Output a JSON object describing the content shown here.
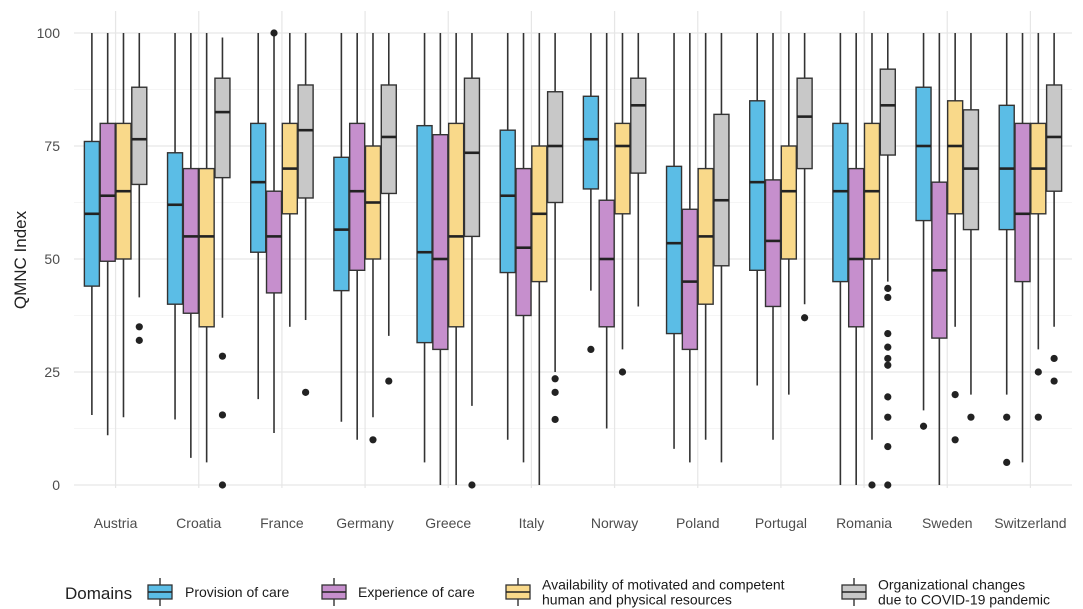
{
  "chart_data": {
    "type": "boxplot",
    "title": "",
    "xlabel": "",
    "ylabel": "QMNC Index",
    "ylim": [
      0,
      100
    ],
    "yticks": [
      0,
      25,
      50,
      75,
      100
    ],
    "grid": true,
    "legend_position": "bottom",
    "legend_title": "Domains",
    "categories": [
      "Austria",
      "Croatia",
      "France",
      "Germany",
      "Greece",
      "Italy",
      "Norway",
      "Poland",
      "Portugal",
      "Romania",
      "Sweden",
      "Switzerland"
    ],
    "series": [
      {
        "name": "Provision of care",
        "color": "#5bbde6",
        "boxes": [
          {
            "min": 15.5,
            "q1": 44,
            "median": 60,
            "q3": 76,
            "max": 100,
            "outliers": []
          },
          {
            "min": 14.5,
            "q1": 40,
            "median": 62,
            "q3": 73.5,
            "max": 100,
            "outliers": []
          },
          {
            "min": 19,
            "q1": 51.5,
            "median": 67,
            "q3": 80,
            "max": 100,
            "outliers": []
          },
          {
            "min": 14,
            "q1": 43,
            "median": 56.5,
            "q3": 72.5,
            "max": 100,
            "outliers": []
          },
          {
            "min": 5,
            "q1": 31.5,
            "median": 51.5,
            "q3": 79.5,
            "max": 100,
            "outliers": []
          },
          {
            "min": 10,
            "q1": 47,
            "median": 64,
            "q3": 78.5,
            "max": 100,
            "outliers": []
          },
          {
            "min": 43,
            "q1": 65.5,
            "median": 76.5,
            "q3": 86,
            "max": 100,
            "outliers": [
              30
            ]
          },
          {
            "min": 8,
            "q1": 33.5,
            "median": 53.5,
            "q3": 70.5,
            "max": 100,
            "outliers": []
          },
          {
            "min": 22,
            "q1": 47.5,
            "median": 67,
            "q3": 85,
            "max": 100,
            "outliers": []
          },
          {
            "min": 0,
            "q1": 45,
            "median": 65,
            "q3": 80,
            "max": 100,
            "outliers": []
          },
          {
            "min": 16.5,
            "q1": 58.5,
            "median": 75,
            "q3": 88,
            "max": 100,
            "outliers": [
              13
            ]
          },
          {
            "min": 20,
            "q1": 56.5,
            "median": 70,
            "q3": 84,
            "max": 100,
            "outliers": [
              15,
              5
            ]
          }
        ]
      },
      {
        "name": "Experience of care",
        "color": "#c68fcd",
        "boxes": [
          {
            "min": 11,
            "q1": 49.5,
            "median": 64,
            "q3": 80,
            "max": 100,
            "outliers": []
          },
          {
            "min": 6,
            "q1": 38,
            "median": 55,
            "q3": 70,
            "max": 100,
            "outliers": []
          },
          {
            "min": 11.5,
            "q1": 42.5,
            "median": 55,
            "q3": 65,
            "max": 100,
            "outliers": []
          },
          {
            "min": 10,
            "q1": 47.5,
            "median": 65,
            "q3": 80,
            "max": 100,
            "outliers": []
          },
          {
            "min": 0,
            "q1": 30,
            "median": 50,
            "q3": 77.5,
            "max": 100,
            "outliers": []
          },
          {
            "min": 5,
            "q1": 37.5,
            "median": 52.5,
            "q3": 70,
            "max": 100,
            "outliers": []
          },
          {
            "min": 12.5,
            "q1": 35,
            "median": 50,
            "q3": 63,
            "max": 100,
            "outliers": []
          },
          {
            "min": 5,
            "q1": 30,
            "median": 45,
            "q3": 61,
            "max": 100,
            "outliers": []
          },
          {
            "min": 10,
            "q1": 39.5,
            "median": 54,
            "q3": 67.5,
            "max": 100,
            "outliers": []
          },
          {
            "min": 0,
            "q1": 35,
            "median": 50,
            "q3": 70,
            "max": 100,
            "outliers": []
          },
          {
            "min": 0,
            "q1": 32.5,
            "median": 47.5,
            "q3": 67,
            "max": 100,
            "outliers": []
          },
          {
            "min": 5,
            "q1": 45,
            "median": 60,
            "q3": 80,
            "max": 100,
            "outliers": []
          }
        ]
      },
      {
        "name": "Availability of motivated and competent human and physical resources",
        "color": "#f9d98a",
        "boxes": [
          {
            "min": 15,
            "q1": 50,
            "median": 65,
            "q3": 80,
            "max": 100,
            "outliers": []
          },
          {
            "min": 5,
            "q1": 35,
            "median": 55,
            "q3": 70,
            "max": 100,
            "outliers": []
          },
          {
            "min": 35,
            "q1": 60,
            "median": 70,
            "q3": 80,
            "max": 100,
            "outliers": []
          },
          {
            "min": 15,
            "q1": 50,
            "median": 62.5,
            "q3": 75,
            "max": 100,
            "outliers": [
              10
            ]
          },
          {
            "min": 0,
            "q1": 35,
            "median": 55,
            "q3": 80,
            "max": 100,
            "outliers": []
          },
          {
            "min": 0,
            "q1": 45,
            "median": 60,
            "q3": 75,
            "max": 100,
            "outliers": []
          },
          {
            "min": 30,
            "q1": 60,
            "median": 75,
            "q3": 80,
            "max": 100,
            "outliers": [
              25
            ]
          },
          {
            "min": 10,
            "q1": 40,
            "median": 55,
            "q3": 70,
            "max": 100,
            "outliers": []
          },
          {
            "min": 20,
            "q1": 50,
            "median": 65,
            "q3": 75,
            "max": 100,
            "outliers": []
          },
          {
            "min": 10,
            "q1": 50,
            "median": 65,
            "q3": 80,
            "max": 100,
            "outliers": [
              0
            ]
          },
          {
            "min": 35,
            "q1": 60,
            "median": 75,
            "q3": 85,
            "max": 100,
            "outliers": [
              20,
              10
            ]
          },
          {
            "min": 30,
            "q1": 60,
            "median": 70,
            "q3": 80,
            "max": 100,
            "outliers": [
              25,
              15
            ]
          }
        ]
      },
      {
        "name": "Organizational changes due to COVID-19 pandemic",
        "color": "#c8c8c8",
        "boxes": [
          {
            "min": 41.5,
            "q1": 66.5,
            "median": 76.5,
            "q3": 88,
            "max": 100,
            "outliers": [
              35,
              32
            ]
          },
          {
            "min": 37,
            "q1": 68,
            "median": 82.5,
            "q3": 90,
            "max": 99,
            "outliers": [
              28.5,
              15.5,
              0
            ]
          },
          {
            "min": 36.5,
            "q1": 63.5,
            "median": 78.5,
            "q3": 88.5,
            "max": 100,
            "outliers": [
              20.5
            ]
          },
          {
            "min": 33,
            "q1": 64.5,
            "median": 77,
            "q3": 88.5,
            "max": 100,
            "outliers": [
              23
            ]
          },
          {
            "min": 17.5,
            "q1": 55,
            "median": 73.5,
            "q3": 90,
            "max": 100,
            "outliers": [
              0
            ]
          },
          {
            "min": 25,
            "q1": 62.5,
            "median": 75,
            "q3": 87,
            "max": 100,
            "outliers": [
              23.5,
              20.5,
              14.5
            ]
          },
          {
            "min": 39.5,
            "q1": 69,
            "median": 84,
            "q3": 90,
            "max": 100,
            "outliers": []
          },
          {
            "min": 5,
            "q1": 48.5,
            "median": 63,
            "q3": 82,
            "max": 100,
            "outliers": []
          },
          {
            "min": 40,
            "q1": 70,
            "median": 81.5,
            "q3": 90,
            "max": 100,
            "outliers": [
              37
            ]
          },
          {
            "min": 45,
            "q1": 73,
            "median": 84,
            "q3": 92,
            "max": 100,
            "outliers": [
              43.5,
              41.5,
              33.5,
              30.5,
              28,
              26.5,
              19.5,
              15,
              8.5,
              0
            ]
          },
          {
            "min": 20,
            "q1": 56.5,
            "median": 70,
            "q3": 83,
            "max": 100,
            "outliers": [
              15
            ]
          },
          {
            "min": 35,
            "q1": 65,
            "median": 77,
            "q3": 88.5,
            "max": 100,
            "outliers": [
              28,
              23
            ]
          }
        ]
      }
    ],
    "extra_outliers": [
      {
        "series": 1,
        "category": 2,
        "values": [
          100
        ]
      }
    ]
  },
  "legend": {
    "title": "Domains",
    "items": [
      {
        "lines": [
          "Provision of care"
        ]
      },
      {
        "lines": [
          "Experience of care"
        ]
      },
      {
        "lines": [
          "Availability of motivated and competent",
          "human and physical resources"
        ]
      },
      {
        "lines": [
          "Organizational changes",
          "due to COVID-19 pandemic"
        ]
      }
    ]
  }
}
